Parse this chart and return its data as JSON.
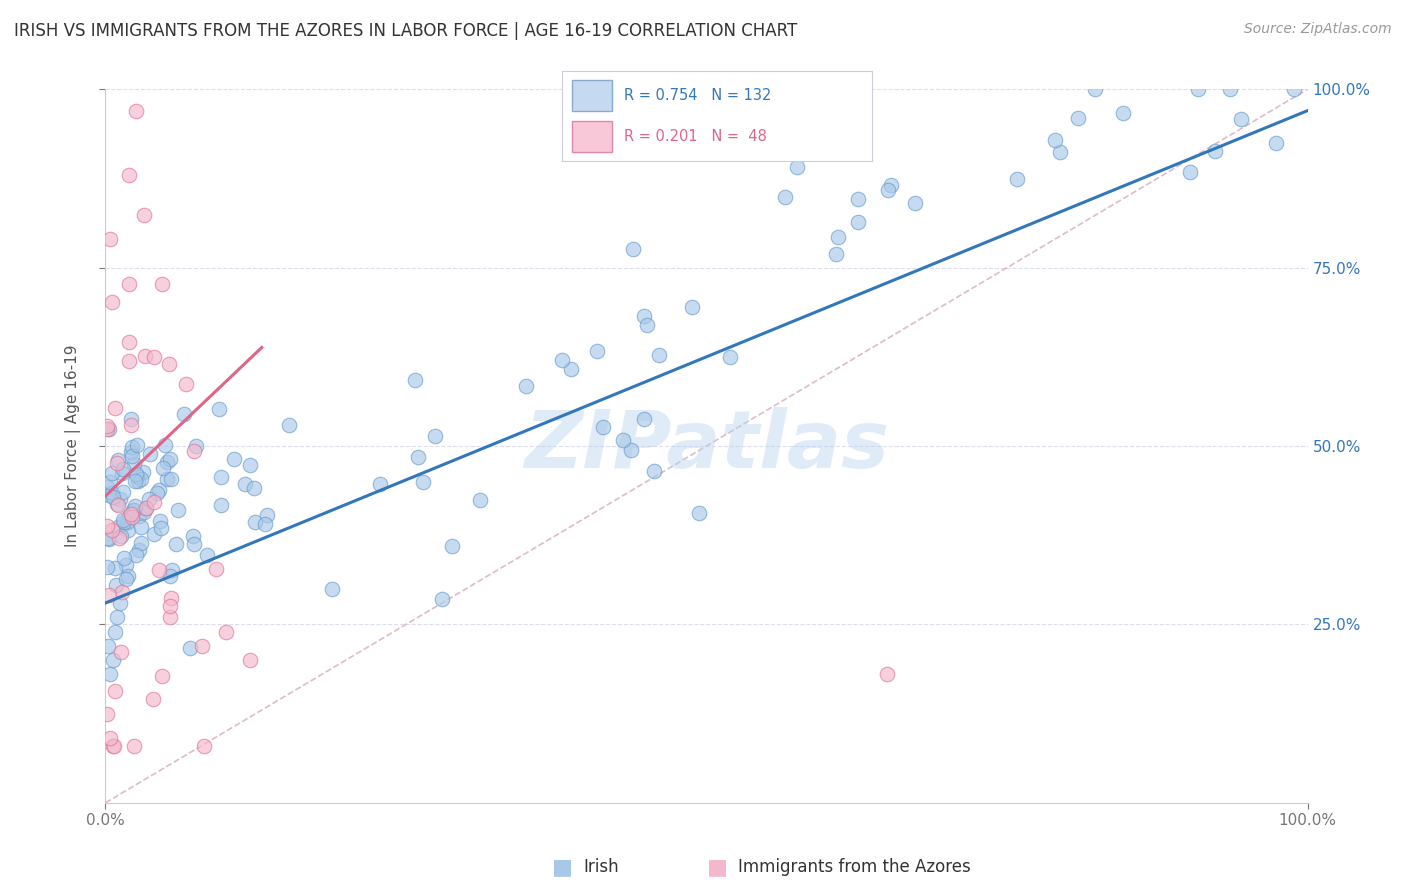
{
  "title": "IRISH VS IMMIGRANTS FROM THE AZORES IN LABOR FORCE | AGE 16-19 CORRELATION CHART",
  "source": "Source: ZipAtlas.com",
  "ylabel": "In Labor Force | Age 16-19",
  "xlim": [
    0.0,
    1.0
  ],
  "ylim": [
    0.0,
    1.0
  ],
  "watermark": "ZIPatlas",
  "irish_R": 0.754,
  "irish_N": 132,
  "azores_R": 0.201,
  "azores_N": 48,
  "irish_color": "#a8c8e8",
  "irish_edge": "#6699cc",
  "azores_color": "#f4b8cc",
  "azores_edge": "#e07090",
  "irish_line_color": "#3377bb",
  "azores_line_color": "#dd6688",
  "diagonal_color": "#ddbbcc",
  "background_color": "#ffffff",
  "grid_color": "#ddddee",
  "title_color": "#333333",
  "label_color": "#555555",
  "right_tick_color": "#3377bb"
}
